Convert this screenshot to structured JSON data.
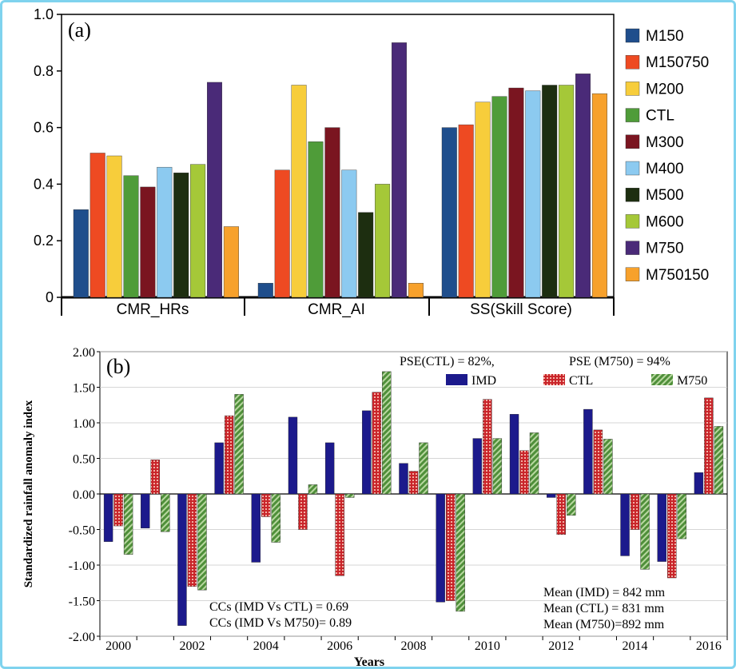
{
  "chart_data": [
    {
      "type": "bar",
      "panel_label": "(a)",
      "categories": [
        "CMR_HRs",
        "CMR_AI",
        "SS(Skill Score)"
      ],
      "ylim": [
        0,
        1.0
      ],
      "yticks": [
        "0",
        "0.2",
        "0.4",
        "0.6",
        "0.8",
        "1.0"
      ],
      "legend_position": "right",
      "series": [
        {
          "name": "M150",
          "color": "#1f4e8c",
          "values": [
            0.31,
            0.05,
            0.6
          ]
        },
        {
          "name": "M150750",
          "color": "#ee4a22",
          "values": [
            0.51,
            0.45,
            0.61
          ]
        },
        {
          "name": "M200",
          "color": "#f7cd3b",
          "values": [
            0.5,
            0.75,
            0.69
          ]
        },
        {
          "name": "CTL",
          "color": "#4f9c39",
          "values": [
            0.43,
            0.55,
            0.71
          ]
        },
        {
          "name": "M300",
          "color": "#7a1520",
          "values": [
            0.39,
            0.6,
            0.74
          ]
        },
        {
          "name": "M400",
          "color": "#8ccaf0",
          "values": [
            0.46,
            0.45,
            0.73
          ]
        },
        {
          "name": "M500",
          "color": "#1d2e10",
          "values": [
            0.44,
            0.3,
            0.75
          ]
        },
        {
          "name": "M600",
          "color": "#a5c838",
          "values": [
            0.47,
            0.4,
            0.75
          ]
        },
        {
          "name": "M750",
          "color": "#4a2a78",
          "values": [
            0.76,
            0.9,
            0.79
          ]
        },
        {
          "name": "M750150",
          "color": "#f7a12c",
          "values": [
            0.25,
            0.05,
            0.72
          ]
        }
      ]
    },
    {
      "type": "bar",
      "panel_label": "(b)",
      "ylabel": "Standardized rainfall anomaly index",
      "xlabel": "Years",
      "years": [
        2000,
        2001,
        2002,
        2003,
        2004,
        2005,
        2006,
        2007,
        2008,
        2009,
        2010,
        2011,
        2012,
        2013,
        2014,
        2015,
        2016
      ],
      "xtick_labels": [
        "2000",
        "2002",
        "2004",
        "2006",
        "2008",
        "2010",
        "2012",
        "2014",
        "2016"
      ],
      "ylim": [
        -2.0,
        2.0
      ],
      "yticks": [
        "-2.00",
        "-1.50",
        "-1.00",
        "-0.50",
        "0.00",
        "0.50",
        "1.00",
        "1.50",
        "2.00"
      ],
      "series": [
        {
          "name": "IMD",
          "color": "#1c1a8c",
          "values": [
            -0.67,
            -0.48,
            -1.85,
            0.72,
            -0.96,
            1.08,
            0.72,
            1.17,
            0.43,
            -1.52,
            0.78,
            1.12,
            -0.05,
            1.19,
            -0.87,
            -0.95,
            0.3
          ]
        },
        {
          "name": "CTL",
          "color": "#c9252a",
          "values": [
            -0.45,
            0.48,
            -1.3,
            1.1,
            -0.32,
            -0.5,
            -1.15,
            1.43,
            0.32,
            -1.5,
            1.33,
            0.61,
            -0.57,
            0.9,
            -0.5,
            -1.18,
            1.35
          ]
        },
        {
          "name": "M750",
          "color": "#4f8f3a",
          "values": [
            -0.85,
            -0.53,
            -1.35,
            1.4,
            -0.68,
            0.13,
            -0.05,
            1.72,
            0.72,
            -1.65,
            0.78,
            0.86,
            -0.3,
            0.77,
            -1.06,
            -0.63,
            0.95
          ]
        }
      ],
      "annotations": {
        "pse_ctl": "PSE(CTL) = 82%,",
        "pse_m750": "PSE (M750) = 94%",
        "cc_ctl": "CCs (IMD Vs CTL)  = 0.69",
        "cc_m750": "CCs (IMD Vs M750)= 0.89",
        "mean_imd": "Mean (IMD) = 842 mm",
        "mean_ctl": "Mean (CTL) = 831 mm",
        "mean_m750": "Mean (M750)=892 mm"
      }
    }
  ]
}
